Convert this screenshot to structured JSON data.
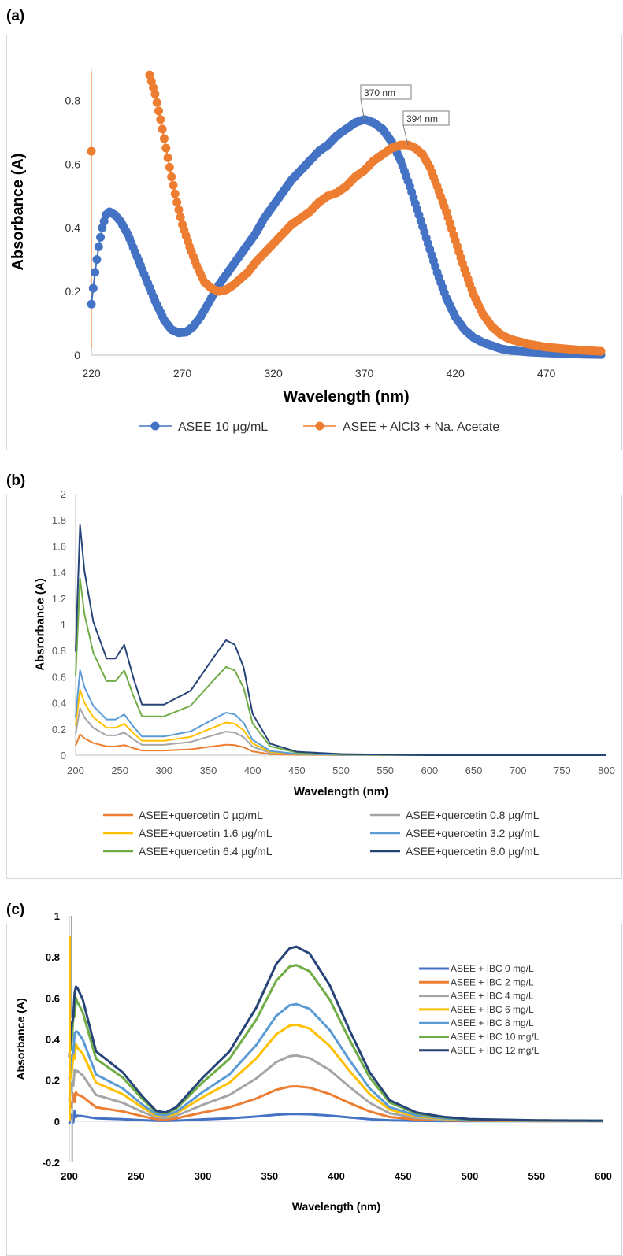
{
  "panels": {
    "a": {
      "label": "(a)"
    },
    "b": {
      "label": "(b)"
    },
    "c": {
      "label": "(c)"
    }
  },
  "chart_data": [
    {
      "id": "a",
      "type": "scatter",
      "title": "",
      "xlabel": "Wavelength (nm)",
      "ylabel": "Absorbance (A)",
      "xlim": [
        220,
        500
      ],
      "ylim": [
        0,
        0.9
      ],
      "x_ticks": [
        220,
        270,
        320,
        370,
        420,
        470
      ],
      "y_ticks": [
        0,
        0.2,
        0.4,
        0.6,
        0.8
      ],
      "y_tick_labels": [
        "0",
        "0.2",
        "0.4",
        "0.6",
        "0.8"
      ],
      "grid": false,
      "legend": "bottom",
      "annotations": [
        {
          "text": "370  nm",
          "x": 370,
          "y": 0.74
        },
        {
          "text": "394 nm",
          "x": 394,
          "y": 0.66
        }
      ],
      "series": [
        {
          "name": "ASEE 10 µg/mL",
          "color": "#4472C4",
          "points": [
            [
              220,
              0.16
            ],
            [
              222,
              0.26
            ],
            [
              224,
              0.34
            ],
            [
              226,
              0.4
            ],
            [
              228,
              0.44
            ],
            [
              230,
              0.45
            ],
            [
              233,
              0.44
            ],
            [
              236,
              0.42
            ],
            [
              240,
              0.38
            ],
            [
              245,
              0.31
            ],
            [
              250,
              0.24
            ],
            [
              255,
              0.17
            ],
            [
              260,
              0.11
            ],
            [
              264,
              0.08
            ],
            [
              268,
              0.07
            ],
            [
              272,
              0.072
            ],
            [
              276,
              0.09
            ],
            [
              280,
              0.12
            ],
            [
              285,
              0.17
            ],
            [
              290,
              0.22
            ],
            [
              295,
              0.26
            ],
            [
              300,
              0.3
            ],
            [
              305,
              0.34
            ],
            [
              310,
              0.38
            ],
            [
              315,
              0.43
            ],
            [
              320,
              0.47
            ],
            [
              325,
              0.51
            ],
            [
              330,
              0.55
            ],
            [
              335,
              0.58
            ],
            [
              340,
              0.61
            ],
            [
              345,
              0.64
            ],
            [
              350,
              0.66
            ],
            [
              355,
              0.69
            ],
            [
              360,
              0.71
            ],
            [
              365,
              0.73
            ],
            [
              370,
              0.74
            ],
            [
              375,
              0.73
            ],
            [
              380,
              0.71
            ],
            [
              385,
              0.67
            ],
            [
              390,
              0.61
            ],
            [
              395,
              0.53
            ],
            [
              400,
              0.44
            ],
            [
              405,
              0.35
            ],
            [
              410,
              0.26
            ],
            [
              415,
              0.18
            ],
            [
              420,
              0.12
            ],
            [
              425,
              0.08
            ],
            [
              430,
              0.055
            ],
            [
              435,
              0.04
            ],
            [
              440,
              0.03
            ],
            [
              445,
              0.02
            ],
            [
              450,
              0.015
            ],
            [
              460,
              0.01
            ],
            [
              470,
              0.007
            ],
            [
              480,
              0.005
            ],
            [
              490,
              0.003
            ],
            [
              500,
              0.002
            ]
          ]
        },
        {
          "name": "ASEE + AlCl3 + Na. Acetate",
          "color": "#ED7D31",
          "points": [
            [
              252,
              0.88
            ],
            [
              255,
              0.82
            ],
            [
              258,
              0.74
            ],
            [
              261,
              0.65
            ],
            [
              264,
              0.56
            ],
            [
              267,
              0.48
            ],
            [
              270,
              0.41
            ],
            [
              274,
              0.34
            ],
            [
              278,
              0.28
            ],
            [
              282,
              0.23
            ],
            [
              286,
              0.21
            ],
            [
              290,
              0.2
            ],
            [
              294,
              0.205
            ],
            [
              298,
              0.22
            ],
            [
              302,
              0.24
            ],
            [
              306,
              0.26
            ],
            [
              310,
              0.29
            ],
            [
              315,
              0.32
            ],
            [
              320,
              0.35
            ],
            [
              325,
              0.38
            ],
            [
              330,
              0.41
            ],
            [
              335,
              0.43
            ],
            [
              340,
              0.45
            ],
            [
              345,
              0.48
            ],
            [
              350,
              0.5
            ],
            [
              355,
              0.51
            ],
            [
              360,
              0.53
            ],
            [
              365,
              0.56
            ],
            [
              370,
              0.58
            ],
            [
              375,
              0.61
            ],
            [
              380,
              0.63
            ],
            [
              385,
              0.65
            ],
            [
              390,
              0.66
            ],
            [
              394,
              0.66
            ],
            [
              398,
              0.65
            ],
            [
              402,
              0.63
            ],
            [
              406,
              0.59
            ],
            [
              410,
              0.53
            ],
            [
              415,
              0.45
            ],
            [
              420,
              0.36
            ],
            [
              425,
              0.27
            ],
            [
              430,
              0.19
            ],
            [
              435,
              0.13
            ],
            [
              440,
              0.09
            ],
            [
              445,
              0.065
            ],
            [
              450,
              0.05
            ],
            [
              460,
              0.035
            ],
            [
              470,
              0.025
            ],
            [
              480,
              0.02
            ],
            [
              490,
              0.015
            ],
            [
              500,
              0.012
            ]
          ]
        }
      ],
      "extra_marks": [
        {
          "type": "point",
          "x": 220,
          "y": 0.64,
          "color": "#ED7D31"
        }
      ]
    },
    {
      "id": "b",
      "type": "line",
      "title": "",
      "xlabel": "Wavelength (nm)",
      "ylabel": "Absrorbance (A)",
      "xlim": [
        200,
        800
      ],
      "ylim": [
        0,
        2
      ],
      "x_ticks": [
        200,
        250,
        300,
        350,
        400,
        450,
        500,
        550,
        600,
        650,
        700,
        750,
        800
      ],
      "y_ticks": [
        0,
        0.2,
        0.4,
        0.6,
        0.8,
        1,
        1.2,
        1.4,
        1.6,
        1.8,
        2
      ],
      "y_tick_labels": [
        "0",
        "0.2",
        "0.4",
        "0.6",
        "0.8",
        "1",
        "1.2",
        "1.4",
        "1.6",
        "1.8",
        "2"
      ],
      "grid": false,
      "legend": "bottom",
      "shape": {
        "x": [
          200,
          205,
          210,
          220,
          235,
          245,
          255,
          265,
          275,
          300,
          330,
          355,
          370,
          380,
          390,
          400,
          420,
          450,
          500,
          600,
          800
        ],
        "s": [
          0.45,
          1.0,
          0.8,
          0.58,
          0.42,
          0.42,
          0.48,
          0.34,
          0.22,
          0.22,
          0.28,
          0.42,
          0.5,
          0.48,
          0.38,
          0.18,
          0.05,
          0.015,
          0.005,
          0,
          0
        ]
      },
      "series": [
        {
          "name": "ASEE+quercetin 0 µg/mL",
          "color": "#ED7D31",
          "peak": 0.16
        },
        {
          "name": "ASEE+quercetin 0.8 µg/mL",
          "color": "#A5A5A5",
          "peak": 0.36
        },
        {
          "name": "ASEE+quercetin 1.6 µg/mL",
          "color": "#FFC000",
          "peak": 0.5
        },
        {
          "name": "ASEE+quercetin 3.2 µg/mL",
          "color": "#5B9BD5",
          "peak": 0.65
        },
        {
          "name": "ASEE+quercetin 6.4 µg/mL",
          "color": "#70AD47",
          "peak": 1.35
        },
        {
          "name": "ASEE+quercetin 8.0 µg/mL",
          "color": "#264478",
          "peak": 1.76
        }
      ]
    },
    {
      "id": "c",
      "type": "line",
      "title": "",
      "xlabel": "Wavelength (nm)",
      "ylabel": "Absorbance (A)",
      "xlim": [
        200,
        600
      ],
      "ylim": [
        -0.2,
        1
      ],
      "x_ticks": [
        200,
        250,
        300,
        350,
        400,
        450,
        500,
        550,
        600
      ],
      "y_ticks": [
        -0.2,
        0,
        0.2,
        0.4,
        0.6,
        0.8,
        1
      ],
      "y_tick_labels": [
        "-0.2",
        "0",
        "0.2",
        "0.4",
        "0.6",
        "0.8",
        "1"
      ],
      "grid": false,
      "legend": "top-right",
      "shape": {
        "x": [
          200,
          205,
          210,
          220,
          240,
          255,
          265,
          272,
          280,
          300,
          320,
          340,
          355,
          365,
          370,
          380,
          395,
          410,
          425,
          440,
          460,
          480,
          500,
          550,
          600
        ],
        "s": [
          0.4,
          0.78,
          0.7,
          0.4,
          0.28,
          0.14,
          0.06,
          0.05,
          0.08,
          0.25,
          0.4,
          0.65,
          0.9,
          0.99,
          1.0,
          0.96,
          0.78,
          0.52,
          0.28,
          0.12,
          0.05,
          0.025,
          0.012,
          0.005,
          0.003
        ]
      },
      "series": [
        {
          "name": "ASEE + IBC 0 mg/L",
          "color": "#4472C4",
          "peak": 0.035
        },
        {
          "name": "ASEE + IBC 2 mg/L",
          "color": "#ED7D31",
          "peak": 0.17
        },
        {
          "name": "ASEE + IBC 4 mg/L",
          "color": "#A5A5A5",
          "peak": 0.32
        },
        {
          "name": "ASEE + IBC 6 mg/L",
          "color": "#FFC000",
          "peak": 0.47
        },
        {
          "name": "ASEE + IBC 8 mg/L",
          "color": "#5B9BD5",
          "peak": 0.57
        },
        {
          "name": "ASEE + IBC 10 mg/L",
          "color": "#70AD47",
          "peak": 0.76
        },
        {
          "name": "ASEE + IBC 12 mg/L",
          "color": "#264478",
          "peak": 0.85
        }
      ]
    }
  ]
}
